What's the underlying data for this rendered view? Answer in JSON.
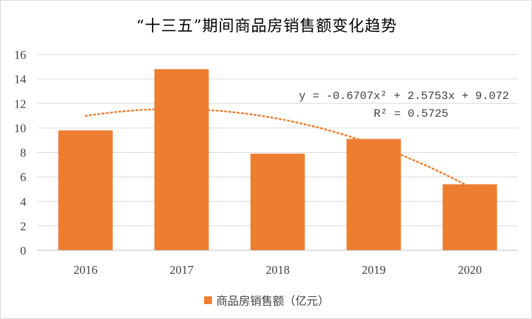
{
  "colors": {
    "bar": "#ED7D31",
    "trendline": "#ED7D31",
    "gridline": "#d9d9d9",
    "axis": "#bfbfbf",
    "text": "#404040"
  },
  "chart_data": {
    "type": "bar",
    "title": "“十三五”期间商品房销售额变化趋势",
    "categories": [
      "2016",
      "2017",
      "2018",
      "2019",
      "2020"
    ],
    "series": [
      {
        "name": "商品房销售额（亿元）",
        "values": [
          9.8,
          14.8,
          7.9,
          9.1,
          5.4
        ]
      }
    ],
    "ylim": [
      0,
      16
    ],
    "yticks": [
      0,
      2,
      4,
      6,
      8,
      10,
      12,
      14,
      16
    ],
    "grid": true,
    "legend": "bottom",
    "trendline": {
      "type": "polynomial",
      "order": 2,
      "coefficients": {
        "a": -0.6707,
        "b": 2.5753,
        "c": 9.072
      },
      "equation_text": "y = -0.6707x² + 2.5753x + 9.072",
      "r2_text": "R² = 0.5725",
      "style": "dotted"
    }
  }
}
